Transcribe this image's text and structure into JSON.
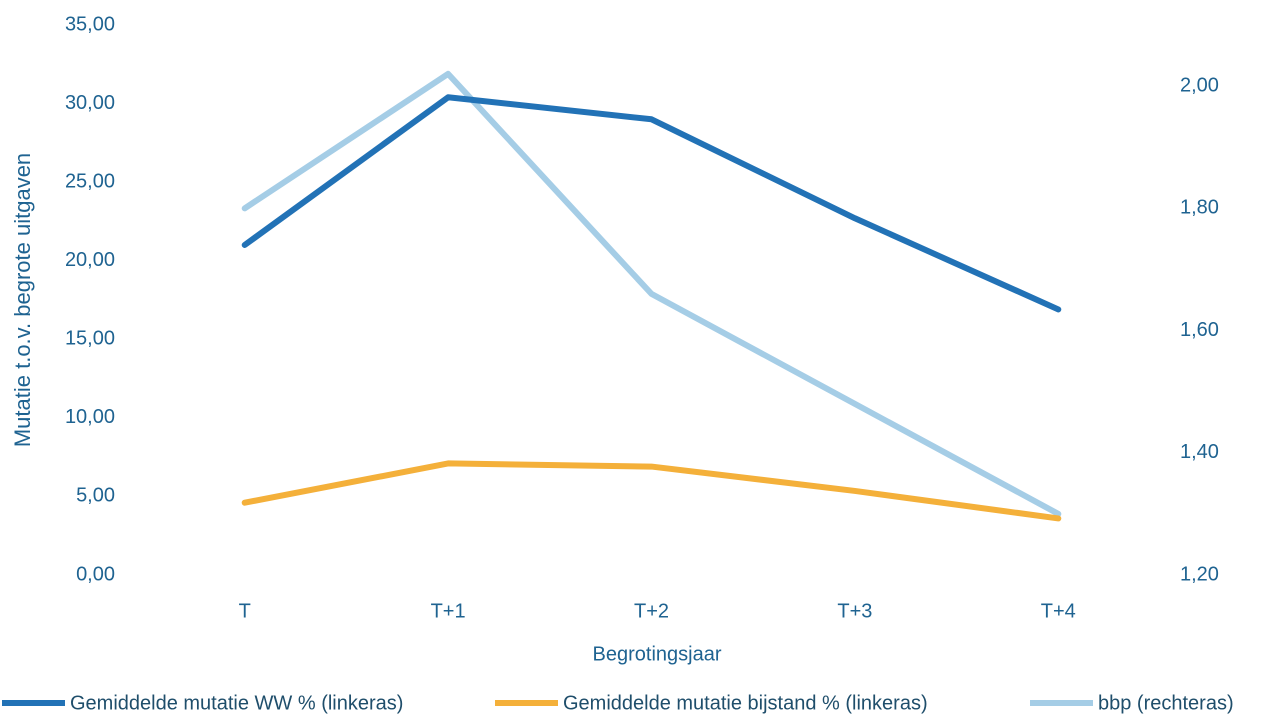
{
  "chart_data": {
    "type": "line",
    "y_label": "Mutatie t.o.v. begrote uitgaven",
    "x_label": "Begrotingsjaar",
    "categories": [
      "T",
      "T+1",
      "T+2",
      "T+3",
      "T+4"
    ],
    "series": [
      {
        "name": "Gemiddelde mutatie WW % (linkeras)",
        "color": "#2272b6",
        "values": [
          21.0,
          30.4,
          29.0,
          22.7,
          16.9
        ]
      },
      {
        "name": "Gemiddelde mutatie bijstand % (linkeras)",
        "color": "#f4b03a",
        "values": [
          4.6,
          7.1,
          6.9,
          5.35,
          3.6
        ]
      },
      {
        "name": "bbp (rechteras)",
        "color": "#a5cde6",
        "axis": "y2",
        "values": [
          1.8,
          2.02,
          1.66,
          1.48,
          1.3
        ]
      }
    ],
    "ylim": [
      0,
      35
    ],
    "yticks": [
      {
        "value": 0,
        "label": "0,00"
      },
      {
        "value": 5,
        "label": "5,00"
      },
      {
        "value": 10,
        "label": "10,00"
      },
      {
        "value": 15,
        "label": "15,00"
      },
      {
        "value": 20,
        "label": "20,00"
      },
      {
        "value": 25,
        "label": "25,00"
      },
      {
        "value": 30,
        "label": "30,00"
      },
      {
        "value": 35,
        "label": "35,00"
      }
    ],
    "y2lim": [
      1.2,
      2.1
    ],
    "y2ticks": [
      {
        "value": 1.2,
        "label": "1,20"
      },
      {
        "value": 1.4,
        "label": "1,40"
      },
      {
        "value": 1.6,
        "label": "1,60"
      },
      {
        "value": 1.8,
        "label": "1,80"
      },
      {
        "value": 2.0,
        "label": "2,00"
      }
    ],
    "legend": "bottom",
    "grid": false
  }
}
